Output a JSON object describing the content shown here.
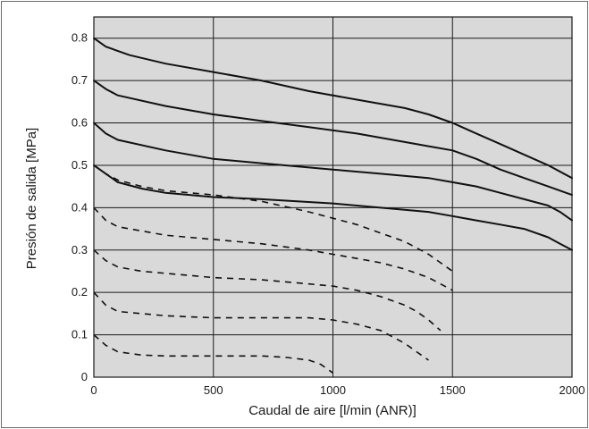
{
  "chart_data": {
    "type": "line",
    "title": "",
    "xlabel": "Caudal de aire [l/min (ANR)]",
    "ylabel": "Presión de salida [MPa]",
    "xlim": [
      0,
      2000
    ],
    "ylim": [
      0,
      0.85
    ],
    "x_ticks": [
      "0",
      "500",
      "1000",
      "1500",
      "2000"
    ],
    "y_ticks": [
      "0",
      "0.1",
      "0.2",
      "0.3",
      "0.4",
      "0.5",
      "0.6",
      "0.7",
      "0.8"
    ],
    "grid": true,
    "background_color": "#d9d9d9",
    "series": [
      {
        "style": "solid",
        "x": [
          0,
          50,
          150,
          300,
          500,
          700,
          900,
          1100,
          1300,
          1400,
          1500,
          1600,
          1700,
          1800,
          1900,
          2000
        ],
        "y": [
          0.8,
          0.78,
          0.76,
          0.74,
          0.72,
          0.7,
          0.675,
          0.655,
          0.635,
          0.62,
          0.6,
          0.575,
          0.55,
          0.525,
          0.5,
          0.47
        ]
      },
      {
        "style": "solid",
        "x": [
          0,
          50,
          100,
          300,
          500,
          700,
          900,
          1100,
          1300,
          1400,
          1500,
          1600,
          1700,
          1800,
          1900,
          2000
        ],
        "y": [
          0.7,
          0.68,
          0.665,
          0.64,
          0.62,
          0.605,
          0.59,
          0.575,
          0.555,
          0.545,
          0.535,
          0.515,
          0.49,
          0.47,
          0.45,
          0.43
        ]
      },
      {
        "style": "solid",
        "x": [
          0,
          50,
          100,
          300,
          500,
          700,
          1000,
          1200,
          1400,
          1500,
          1600,
          1700,
          1800,
          1900,
          1950,
          2000
        ],
        "y": [
          0.6,
          0.575,
          0.56,
          0.535,
          0.515,
          0.505,
          0.49,
          0.48,
          0.47,
          0.46,
          0.45,
          0.435,
          0.42,
          0.405,
          0.39,
          0.37
        ]
      },
      {
        "style": "solid",
        "x": [
          0,
          50,
          100,
          200,
          300,
          500,
          700,
          1000,
          1200,
          1400,
          1500,
          1600,
          1700,
          1800,
          1900,
          1950,
          2000
        ],
        "y": [
          0.5,
          0.48,
          0.46,
          0.445,
          0.435,
          0.425,
          0.42,
          0.41,
          0.4,
          0.39,
          0.38,
          0.37,
          0.36,
          0.35,
          0.33,
          0.315,
          0.3
        ]
      },
      {
        "style": "dashed",
        "x": [
          0,
          50,
          100,
          200,
          300,
          500,
          700,
          900,
          1000,
          1100,
          1200,
          1300,
          1400,
          1450,
          1500
        ],
        "y": [
          0.5,
          0.48,
          0.465,
          0.45,
          0.44,
          0.43,
          0.415,
          0.39,
          0.375,
          0.36,
          0.34,
          0.32,
          0.29,
          0.27,
          0.25
        ]
      },
      {
        "style": "dashed",
        "x": [
          0,
          50,
          100,
          200,
          300,
          500,
          700,
          900,
          1000,
          1100,
          1200,
          1300,
          1400,
          1450,
          1500
        ],
        "y": [
          0.4,
          0.37,
          0.355,
          0.345,
          0.335,
          0.325,
          0.315,
          0.3,
          0.29,
          0.28,
          0.27,
          0.255,
          0.235,
          0.22,
          0.205
        ]
      },
      {
        "style": "dashed",
        "x": [
          0,
          50,
          100,
          200,
          300,
          500,
          700,
          900,
          1000,
          1100,
          1200,
          1300,
          1350,
          1400,
          1450
        ],
        "y": [
          0.3,
          0.275,
          0.26,
          0.25,
          0.245,
          0.235,
          0.23,
          0.22,
          0.215,
          0.205,
          0.19,
          0.17,
          0.155,
          0.135,
          0.11
        ]
      },
      {
        "style": "dashed",
        "x": [
          0,
          50,
          100,
          200,
          300,
          500,
          700,
          900,
          1000,
          1100,
          1200,
          1250,
          1300,
          1350,
          1400
        ],
        "y": [
          0.2,
          0.17,
          0.155,
          0.15,
          0.145,
          0.14,
          0.14,
          0.14,
          0.135,
          0.125,
          0.11,
          0.095,
          0.08,
          0.06,
          0.04
        ]
      },
      {
        "style": "dashed",
        "x": [
          0,
          50,
          100,
          200,
          300,
          500,
          700,
          800,
          900,
          950,
          1000
        ],
        "y": [
          0.1,
          0.075,
          0.06,
          0.052,
          0.05,
          0.05,
          0.05,
          0.047,
          0.04,
          0.03,
          0.01
        ]
      }
    ]
  }
}
